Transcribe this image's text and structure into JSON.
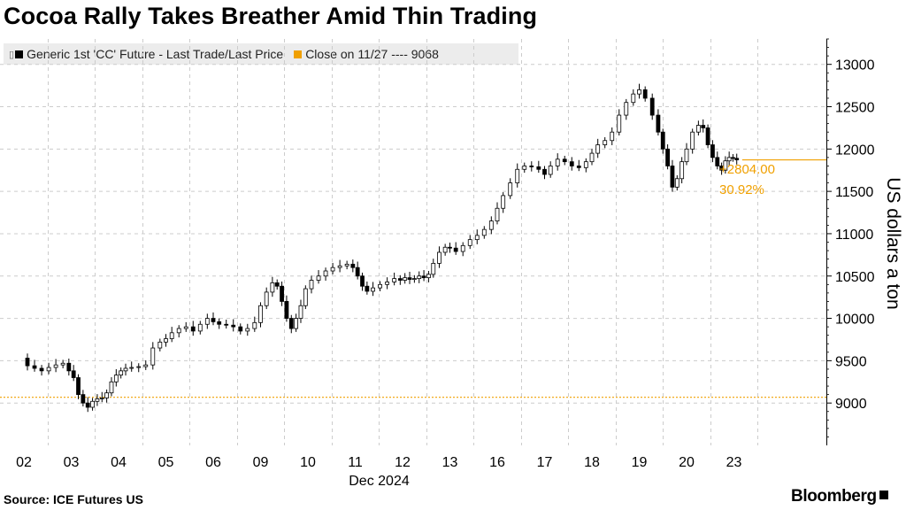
{
  "title": "Cocoa Rally Takes Breather Amid Thin Trading",
  "legend": {
    "series_label": "Generic 1st 'CC' Future - Last Trade/Last Price",
    "reference_label": "Close on 11/27 ---- 9068",
    "series_color": "#000000",
    "reference_color": "#f0a000"
  },
  "source": "Source: ICE Futures US",
  "brand": "Bloomberg",
  "colors": {
    "grid": "#cccccc",
    "reference": "#f0a000",
    "annotation": "#f0a000",
    "candle": "#000000"
  },
  "chart_data": {
    "type": "candlestick",
    "title": "Cocoa Rally Takes Breather Amid Thin Trading",
    "series_name": "Generic 1st 'CC' Future - Last Trade/Last Price",
    "ylabel": "US dollars a ton",
    "xlabel": "Dec 2024",
    "ylim": [
      8500,
      13300
    ],
    "yticks": [
      9000,
      9500,
      10000,
      10500,
      11000,
      11500,
      12000,
      12500,
      13000
    ],
    "x_categories": [
      "02",
      "03",
      "04",
      "05",
      "06",
      "09",
      "10",
      "11",
      "12",
      "13",
      "16",
      "17",
      "18",
      "19",
      "20",
      "23"
    ],
    "xlabel_under": "11",
    "reference_line": {
      "label": "Close on 11/27",
      "value": 9068
    },
    "last_value": 11872,
    "annotation": {
      "change": "+2804.00",
      "percent": "30.92%"
    },
    "points": [
      [
        0.0,
        9530
      ],
      [
        0.15,
        9440
      ],
      [
        0.3,
        9410
      ],
      [
        0.45,
        9380
      ],
      [
        0.6,
        9420
      ],
      [
        0.75,
        9450
      ],
      [
        0.9,
        9470
      ],
      [
        1.0,
        9380
      ],
      [
        1.1,
        9300
      ],
      [
        1.2,
        9100
      ],
      [
        1.3,
        9000
      ],
      [
        1.4,
        8950
      ],
      [
        1.5,
        9020
      ],
      [
        1.6,
        9050
      ],
      [
        1.7,
        9060
      ],
      [
        1.8,
        9120
      ],
      [
        1.9,
        9250
      ],
      [
        2.0,
        9330
      ],
      [
        2.1,
        9380
      ],
      [
        2.2,
        9410
      ],
      [
        2.35,
        9420
      ],
      [
        2.5,
        9430
      ],
      [
        2.65,
        9450
      ],
      [
        2.8,
        9650
      ],
      [
        2.95,
        9720
      ],
      [
        3.05,
        9760
      ],
      [
        3.2,
        9830
      ],
      [
        3.35,
        9880
      ],
      [
        3.5,
        9900
      ],
      [
        3.65,
        9850
      ],
      [
        3.8,
        9930
      ],
      [
        3.95,
        10000
      ],
      [
        4.05,
        9960
      ],
      [
        4.2,
        9930
      ],
      [
        4.35,
        9920
      ],
      [
        4.5,
        9900
      ],
      [
        4.65,
        9850
      ],
      [
        4.8,
        9880
      ],
      [
        4.95,
        9950
      ],
      [
        5.05,
        10150
      ],
      [
        5.2,
        10310
      ],
      [
        5.3,
        10420
      ],
      [
        5.4,
        10380
      ],
      [
        5.5,
        10200
      ],
      [
        5.6,
        10000
      ],
      [
        5.7,
        9880
      ],
      [
        5.8,
        10000
      ],
      [
        5.9,
        10150
      ],
      [
        6.0,
        10350
      ],
      [
        6.15,
        10450
      ],
      [
        6.3,
        10500
      ],
      [
        6.45,
        10560
      ],
      [
        6.6,
        10600
      ],
      [
        6.75,
        10620
      ],
      [
        6.9,
        10640
      ],
      [
        7.0,
        10600
      ],
      [
        7.1,
        10500
      ],
      [
        7.2,
        10380
      ],
      [
        7.3,
        10320
      ],
      [
        7.45,
        10360
      ],
      [
        7.6,
        10400
      ],
      [
        7.75,
        10430
      ],
      [
        7.9,
        10470
      ],
      [
        8.0,
        10450
      ],
      [
        8.1,
        10480
      ],
      [
        8.2,
        10460
      ],
      [
        8.3,
        10470
      ],
      [
        8.4,
        10500
      ],
      [
        8.5,
        10480
      ],
      [
        8.6,
        10520
      ],
      [
        8.7,
        10650
      ],
      [
        8.85,
        10780
      ],
      [
        8.95,
        10840
      ],
      [
        9.05,
        10830
      ],
      [
        9.2,
        10790
      ],
      [
        9.35,
        10860
      ],
      [
        9.5,
        10930
      ],
      [
        9.65,
        10980
      ],
      [
        9.8,
        11050
      ],
      [
        9.95,
        11150
      ],
      [
        10.05,
        11300
      ],
      [
        10.2,
        11450
      ],
      [
        10.35,
        11600
      ],
      [
        10.5,
        11760
      ],
      [
        10.65,
        11800
      ],
      [
        10.8,
        11790
      ],
      [
        10.95,
        11760
      ],
      [
        11.05,
        11700
      ],
      [
        11.2,
        11800
      ],
      [
        11.35,
        11880
      ],
      [
        11.5,
        11850
      ],
      [
        11.65,
        11800
      ],
      [
        11.8,
        11780
      ],
      [
        11.95,
        11850
      ],
      [
        12.05,
        11950
      ],
      [
        12.2,
        12050
      ],
      [
        12.35,
        12100
      ],
      [
        12.5,
        12200
      ],
      [
        12.65,
        12400
      ],
      [
        12.8,
        12550
      ],
      [
        12.95,
        12650
      ],
      [
        13.05,
        12700
      ],
      [
        13.2,
        12600
      ],
      [
        13.35,
        12400
      ],
      [
        13.45,
        12200
      ],
      [
        13.55,
        12000
      ],
      [
        13.65,
        11800
      ],
      [
        13.75,
        11550
      ],
      [
        13.85,
        11650
      ],
      [
        13.95,
        11850
      ],
      [
        14.05,
        12000
      ],
      [
        14.2,
        12200
      ],
      [
        14.3,
        12280
      ],
      [
        14.4,
        12250
      ],
      [
        14.5,
        12050
      ],
      [
        14.6,
        11900
      ],
      [
        14.7,
        11800
      ],
      [
        14.78,
        11750
      ],
      [
        14.86,
        11860
      ],
      [
        14.94,
        11900
      ],
      [
        15.02,
        11890
      ],
      [
        15.1,
        11872
      ]
    ]
  }
}
